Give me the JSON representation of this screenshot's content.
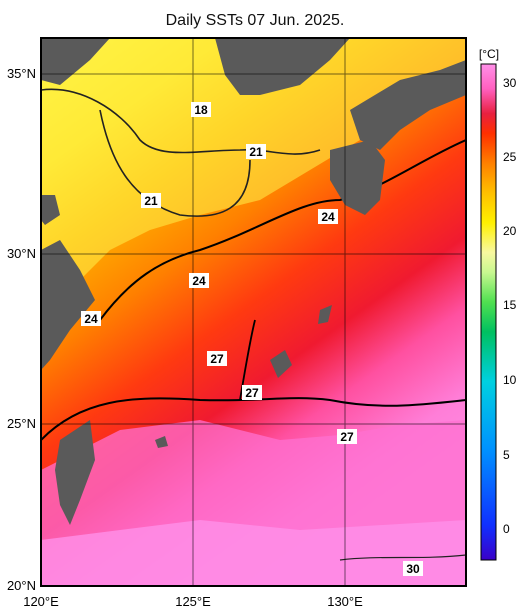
{
  "title": "Daily SSTs 07 Jun. 2025.",
  "colorbar": {
    "unit": "[°C]",
    "ticks": [
      "30",
      "25",
      "20",
      "15",
      "10",
      "5",
      "0"
    ],
    "min": -2,
    "max": 31,
    "colors": [
      "#3a00c8",
      "#1030ff",
      "#0090ff",
      "#00d0e0",
      "#00c060",
      "#50e050",
      "#b8f080",
      "#f8f8a0",
      "#fff000",
      "#ffc000",
      "#ff9000",
      "#ff4000",
      "#e82040",
      "#ff60c0",
      "#ff90e8"
    ]
  },
  "axes": {
    "x_ticks": [
      "120°E",
      "125°E",
      "130°E"
    ],
    "y_ticks": [
      "35°N",
      "30°N",
      "25°N",
      "20°N"
    ],
    "lon_range": [
      120,
      134
    ],
    "lat_range": [
      20,
      36
    ]
  },
  "contour_labels": [
    "18",
    "21",
    "21",
    "24",
    "24",
    "24",
    "27",
    "27",
    "27",
    "30"
  ],
  "colors": {
    "land": "#5a5a5a",
    "frame": "#000000",
    "grid": "#000000"
  }
}
